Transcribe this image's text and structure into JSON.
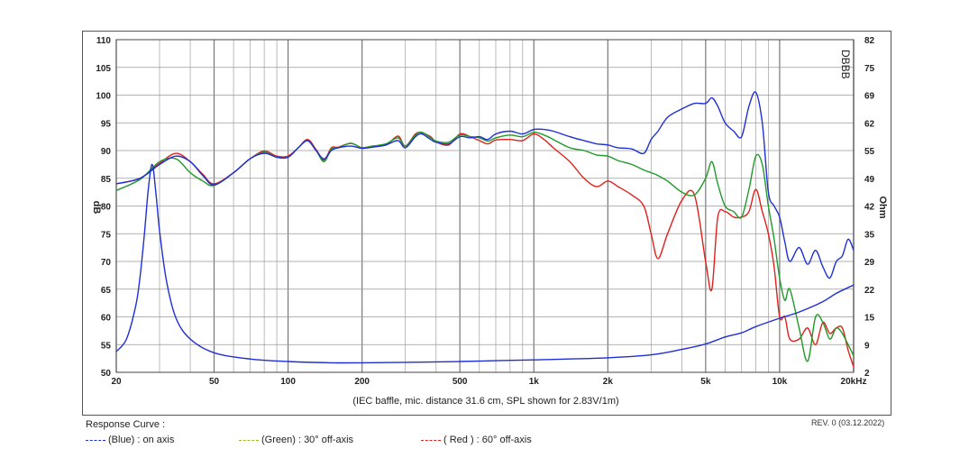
{
  "chart_data": {
    "type": "line",
    "x_axis": {
      "scale": "log",
      "range": [
        20,
        20000
      ],
      "unit_label": "kHz",
      "ticks": [
        {
          "v": 20,
          "label": "20"
        },
        {
          "v": 50,
          "label": "50"
        },
        {
          "v": 100,
          "label": "100"
        },
        {
          "v": 200,
          "label": "200"
        },
        {
          "v": 500,
          "label": "500"
        },
        {
          "v": 1000,
          "label": "1k"
        },
        {
          "v": 2000,
          "label": "2k"
        },
        {
          "v": 5000,
          "label": "5k"
        },
        {
          "v": 10000,
          "label": "10k"
        },
        {
          "v": 20000,
          "label": "20kHz"
        }
      ]
    },
    "y_axis_left": {
      "label": "dB",
      "range": [
        50,
        110
      ],
      "ticks": [
        "110",
        "105",
        "100",
        "95",
        "90",
        "85",
        "80",
        "75",
        "70",
        "65",
        "60",
        "55",
        "50"
      ]
    },
    "y_axis_right": {
      "label": "Ohm",
      "ticks": [
        "82",
        "75",
        "69",
        "62",
        "55",
        "49",
        "42",
        "35",
        "29",
        "22",
        "15",
        "9",
        "2"
      ]
    },
    "caption": "(IEC baffle, mic. distance 31.6 cm, SPL shown for 2.83V/1m)",
    "grid": true,
    "series": [
      {
        "name": "(Blue)  : on axis",
        "color": "#1f2fd6",
        "x": [
          20,
          25,
          30,
          35,
          40,
          45,
          50,
          60,
          70,
          80,
          90,
          100,
          110,
          120,
          130,
          140,
          150,
          160,
          180,
          200,
          220,
          250,
          280,
          300,
          330,
          350,
          380,
          400,
          450,
          500,
          550,
          600,
          650,
          700,
          800,
          900,
          1000,
          1100,
          1200,
          1400,
          1600,
          1800,
          2000,
          2200,
          2500,
          2800,
          3000,
          3200,
          3500,
          4000,
          4500,
          5000,
          5300,
          5600,
          6000,
          6500,
          7000,
          7500,
          8000,
          8500,
          9000,
          9500,
          10000,
          10500,
          11000,
          12000,
          13000,
          14000,
          15000,
          16000,
          17000,
          18000,
          19000,
          20000
        ],
        "y": [
          84,
          85,
          87.5,
          89,
          88,
          85.5,
          83.8,
          86,
          88.5,
          89.5,
          88.8,
          88.8,
          90.5,
          91.8,
          90,
          88.5,
          90,
          90.5,
          90.8,
          90.4,
          90.6,
          91,
          91.8,
          90.5,
          92.5,
          93,
          92,
          91.5,
          91.2,
          92.5,
          92.3,
          92.5,
          92,
          93,
          93.5,
          93,
          93.8,
          93.8,
          93.5,
          92.5,
          91.8,
          91.2,
          91,
          90.5,
          90.3,
          89.5,
          92,
          93.5,
          96,
          97.5,
          98.5,
          98.5,
          99.5,
          98,
          95,
          93.5,
          92.5,
          98,
          100.5,
          95,
          82.5,
          80,
          78,
          73.5,
          70,
          72.5,
          69.5,
          72,
          69,
          67,
          70,
          71,
          74,
          72
        ]
      },
      {
        "name": "(Green) : 30° off-axis",
        "color": "#1f9a2a",
        "x": [
          20,
          25,
          30,
          35,
          40,
          45,
          50,
          60,
          70,
          80,
          90,
          100,
          110,
          120,
          130,
          140,
          150,
          160,
          180,
          200,
          220,
          250,
          280,
          300,
          330,
          350,
          380,
          400,
          450,
          500,
          550,
          600,
          650,
          700,
          800,
          900,
          1000,
          1100,
          1200,
          1400,
          1600,
          1800,
          2000,
          2200,
          2500,
          2800,
          3000,
          3200,
          3500,
          4000,
          4500,
          5000,
          5300,
          5600,
          6000,
          6500,
          7000,
          7500,
          8000,
          8500,
          9000,
          9500,
          10000,
          10500,
          11000,
          12000,
          13000,
          14000,
          15000,
          16000,
          17000,
          18000,
          19000,
          20000
        ],
        "y": [
          82.8,
          84.8,
          88,
          88.5,
          86,
          84.5,
          83.7,
          86,
          88.5,
          89.7,
          88.8,
          88.8,
          90.5,
          91.8,
          90,
          88,
          90.3,
          90.5,
          91.3,
          90.5,
          90.8,
          91.2,
          92.3,
          90.8,
          92.8,
          93.3,
          92.3,
          91.7,
          91.5,
          92.8,
          92.5,
          92.3,
          91.7,
          92.3,
          92.8,
          92.5,
          93.3,
          92.8,
          92,
          90.5,
          90,
          89.2,
          89,
          88.2,
          87.5,
          86.5,
          86,
          85.5,
          84.5,
          82.5,
          82,
          85,
          88,
          84,
          80,
          79,
          78,
          83,
          89,
          87.5,
          80,
          74,
          67,
          63,
          65,
          58,
          52,
          60,
          59,
          56,
          58,
          57,
          55,
          53
        ]
      },
      {
        "name": "( Red ) : 60° off-axis",
        "color": "#e0211b",
        "x": [
          20,
          25,
          30,
          35,
          40,
          45,
          50,
          60,
          70,
          80,
          90,
          100,
          110,
          120,
          130,
          140,
          150,
          160,
          180,
          200,
          220,
          250,
          280,
          300,
          330,
          350,
          380,
          400,
          450,
          500,
          550,
          600,
          650,
          700,
          800,
          900,
          1000,
          1100,
          1200,
          1400,
          1600,
          1800,
          2000,
          2200,
          2500,
          2800,
          3000,
          3200,
          3500,
          4000,
          4500,
          5000,
          5300,
          5600,
          6000,
          6500,
          7000,
          7500,
          8000,
          8500,
          9000,
          9500,
          10000,
          10500,
          11000,
          12000,
          13000,
          14000,
          15000,
          16000,
          17000,
          18000,
          19000,
          20000
        ],
        "y": [
          84,
          85,
          87.7,
          89.5,
          88,
          85.7,
          84,
          86,
          88.5,
          89.9,
          89,
          89,
          90.5,
          92,
          90.2,
          88.3,
          90.5,
          90.6,
          91.3,
          90.5,
          90.8,
          91,
          92.6,
          90.8,
          93,
          93.2,
          92.5,
          91.6,
          91,
          93,
          92.5,
          91.8,
          91.2,
          91.9,
          92,
          91.8,
          93,
          92,
          90.5,
          88,
          85,
          83.5,
          84.5,
          83.5,
          82,
          80,
          75,
          70.5,
          75,
          81,
          82,
          70,
          65,
          78,
          79,
          78,
          78,
          79,
          83,
          79,
          75,
          69,
          60,
          60,
          56,
          56,
          58,
          55,
          59,
          57,
          58,
          58,
          54,
          51
        ]
      },
      {
        "name": "impedance",
        "color": "#1f2fd6",
        "y_unit": "Ohm",
        "x": [
          20,
          22,
          24,
          25,
          26,
          27,
          28,
          29,
          30,
          32,
          35,
          40,
          50,
          70,
          100,
          150,
          200,
          300,
          500,
          700,
          1000,
          2000,
          3000,
          4000,
          5000,
          6000,
          7000,
          8000,
          10000,
          12000,
          15000,
          17000,
          20000
        ],
        "y": [
          7,
          10,
          18,
          25,
          35,
          46,
          52,
          45,
          36,
          24,
          15,
          10,
          6.7,
          5.2,
          4.6,
          4.3,
          4.3,
          4.4,
          4.6,
          4.8,
          5,
          5.5,
          6.2,
          7.5,
          8.8,
          10.5,
          11.5,
          13,
          15,
          16.5,
          19,
          21,
          23
        ]
      }
    ]
  },
  "watermark": "DBBB",
  "legend_title": "Response Curve :",
  "legend_items": [
    {
      "label": "(Blue)  : on axis",
      "color": "#1f2fd6"
    },
    {
      "label": "(Green) : 30° off-axis",
      "color": "#9bbf2a"
    },
    {
      "label": "( Red ) : 60° off-axis",
      "color": "#e0211b"
    }
  ],
  "revision": "REV. 0 (03.12.2022)"
}
